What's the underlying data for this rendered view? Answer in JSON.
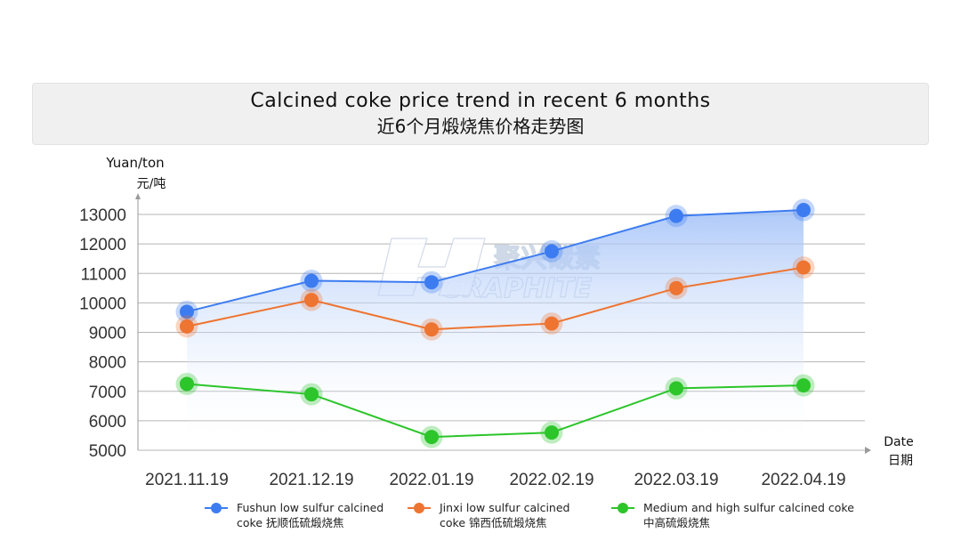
{
  "title": {
    "line1": "Calcined coke price trend in recent 6 months",
    "line2": "近6个月煅烧焦价格走势图"
  },
  "watermark": {
    "cn": "聚兴碳素",
    "en": "GRAPHITE"
  },
  "chart_data": {
    "type": "line",
    "ylabel_en": "Yuan/ton",
    "ylabel_cn": "元/吨",
    "xlabel_en": "Date",
    "xlabel_cn": "日期",
    "categories": [
      "2021.11.19",
      "2021.12.19",
      "2022.01.19",
      "2022.02.19",
      "2022.03.19",
      "2022.04.19"
    ],
    "ylim": [
      5000,
      13000
    ],
    "yticks": [
      5000,
      6000,
      7000,
      8000,
      9000,
      10000,
      11000,
      12000,
      13000
    ],
    "grid": true,
    "legend_position": "bottom",
    "series": [
      {
        "name": "Fushun low sulfur calcined coke 抚顺低硫煅烧焦",
        "label_lines": [
          "Fushun low sulfur calcined",
          "coke 抚顺低硫煅烧焦"
        ],
        "color": "#3d7cf0",
        "values": [
          9700,
          10750,
          10700,
          11750,
          12950,
          13150
        ]
      },
      {
        "name": "Jinxi low sulfur calcined coke 锦西低硫煅烧焦",
        "label_lines": [
          "Jinxi low sulfur calcined",
          "coke 锦西低硫煅烧焦"
        ],
        "color": "#ee7431",
        "values": [
          9200,
          10100,
          9100,
          9300,
          10500,
          11200
        ]
      },
      {
        "name": "Medium and high sulfur calcined coke 中高硫煅烧焦",
        "label_lines": [
          "Medium and high sulfur calcined coke",
          "中高硫煅烧焦"
        ],
        "color": "#2cc52a",
        "values": [
          7250,
          6900,
          5450,
          5600,
          7100,
          7200
        ]
      }
    ]
  }
}
